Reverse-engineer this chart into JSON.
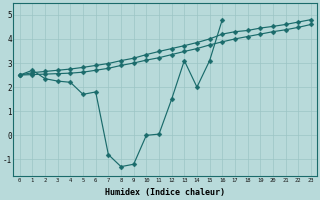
{
  "xlabel": "Humidex (Indice chaleur)",
  "bg_color": "#b8dada",
  "line_color": "#1a6b6b",
  "grid_color": "#9cc5c5",
  "xlim": [
    -0.5,
    23.5
  ],
  "ylim": [
    -1.7,
    5.5
  ],
  "line_volatile_x": [
    0,
    1,
    2,
    3,
    4,
    5,
    6,
    7,
    8,
    9,
    10,
    11,
    12,
    13,
    14,
    15,
    16
  ],
  "line_volatile_y": [
    2.5,
    2.7,
    2.35,
    2.25,
    2.2,
    1.7,
    1.8,
    -0.8,
    -1.3,
    -1.2,
    0.0,
    0.05,
    1.5,
    3.1,
    2.0,
    3.1,
    4.8
  ],
  "line_upper_x": [
    0,
    1,
    2,
    3,
    4,
    5,
    6,
    7,
    8,
    9,
    10,
    11,
    12,
    13,
    14,
    15,
    16,
    17,
    18,
    19,
    20,
    21,
    22,
    23
  ],
  "line_upper_y": [
    2.5,
    2.6,
    2.65,
    2.7,
    2.75,
    2.82,
    2.9,
    2.98,
    3.1,
    3.2,
    3.35,
    3.48,
    3.6,
    3.72,
    3.85,
    4.0,
    4.2,
    4.3,
    4.35,
    4.45,
    4.52,
    4.6,
    4.7,
    4.8
  ],
  "line_lower_x": [
    0,
    1,
    2,
    3,
    4,
    5,
    6,
    7,
    8,
    9,
    10,
    11,
    12,
    13,
    14,
    15,
    16,
    17,
    18,
    19,
    20,
    21,
    22,
    23
  ],
  "line_lower_y": [
    2.5,
    2.52,
    2.54,
    2.56,
    2.58,
    2.62,
    2.7,
    2.78,
    2.9,
    3.0,
    3.12,
    3.22,
    3.35,
    3.48,
    3.6,
    3.75,
    3.88,
    4.0,
    4.1,
    4.2,
    4.3,
    4.38,
    4.48,
    4.6
  ],
  "xticks": [
    0,
    1,
    2,
    3,
    4,
    5,
    6,
    7,
    8,
    9,
    10,
    11,
    12,
    13,
    14,
    15,
    16,
    17,
    18,
    19,
    20,
    21,
    22,
    23
  ],
  "yticks": [
    -1,
    0,
    1,
    2,
    3,
    4,
    5
  ]
}
